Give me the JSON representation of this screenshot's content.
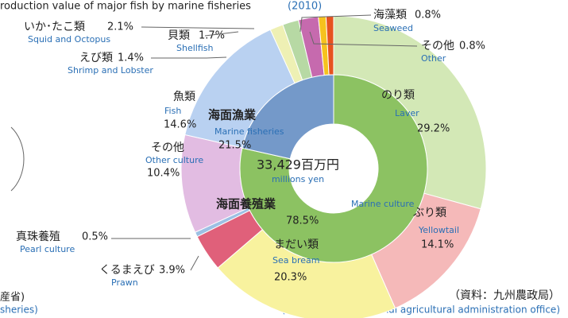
{
  "chart_data": [
    {
      "type": "donut",
      "title": "roduction value of major fish by marine fisheries",
      "title_year": "(2010)",
      "categories": [
        "Laver",
        "Yellowtail",
        "Sea bream",
        "Prawn",
        "Pearl culture",
        "Other culture",
        "Fish",
        "Shrimp and Lobster",
        "Shellfish",
        "Squid and Octopus",
        "Seaweed",
        "Other"
      ],
      "labels_ja": [
        "のり類",
        "ぶり類",
        "まだい類",
        "くるまえび",
        "真珠養殖",
        "その他",
        "魚類",
        "えび類",
        "貝類",
        "いか･たこ類",
        "海藻類",
        "その他"
      ],
      "values": [
        29.2,
        14.1,
        20.3,
        3.9,
        0.5,
        10.4,
        14.6,
        1.4,
        1.7,
        2.1,
        0.8,
        0.8
      ],
      "value_labels": [
        "29.2%",
        "14.1%",
        "20.3%",
        "3.9%",
        "0.5%",
        "10.4%",
        "14.6%",
        "1.4%",
        "1.7%",
        "2.1%",
        "0.8%",
        "0.8%"
      ],
      "colors": [
        "#d3e8b6",
        "#f5b9b9",
        "#f8f29e",
        "#e0607a",
        "#9cc0e4",
        "#e2bce2",
        "#b9d1f1",
        "#eef0b4",
        "#b7d9a4",
        "#c66aae",
        "#f6c21e",
        "#e6531f"
      ]
    },
    {
      "type": "donut",
      "categories": [
        "Marine culture",
        "Marine fisheries"
      ],
      "labels_ja": [
        "海面養殖業",
        "海面漁業"
      ],
      "values": [
        78.5,
        21.5
      ],
      "value_labels": [
        "78.5%",
        "21.5%"
      ],
      "colors": [
        "#8cc262",
        "#7499c9"
      ],
      "center_label": "33,429百万円",
      "center_label_en": "millions yen"
    }
  ],
  "footer": {
    "source_ja": "（資料：九州農政局）",
    "source_en": "(Source:Kyushu regional agricultural administration office)",
    "left_ja": "産省)",
    "left_en": "sheries)"
  }
}
